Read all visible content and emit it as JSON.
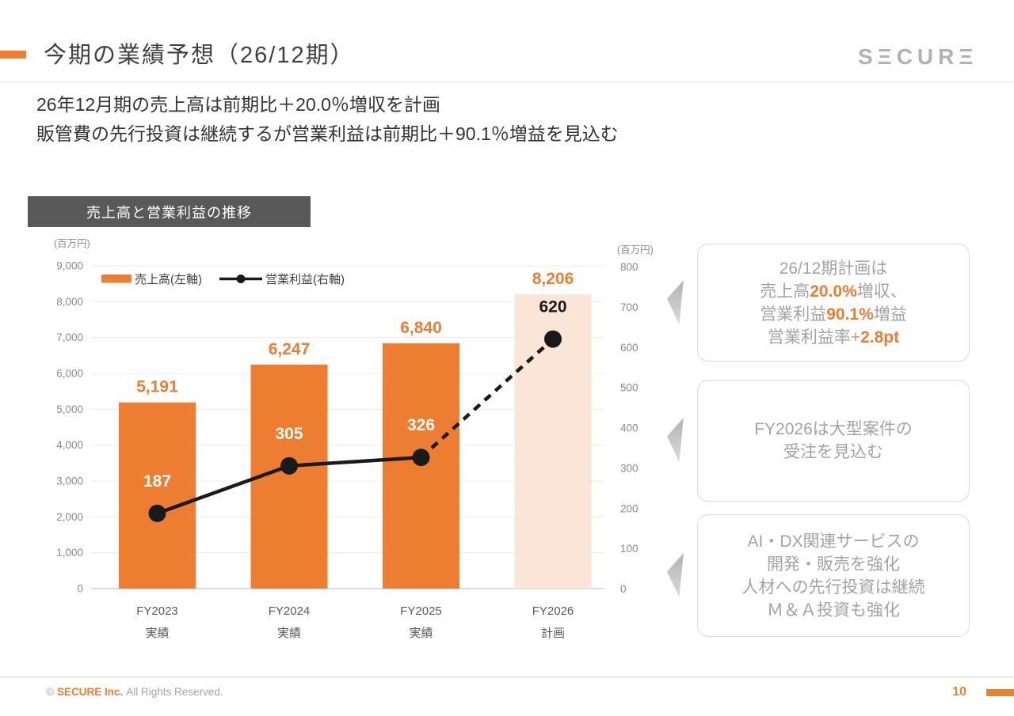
{
  "header": {
    "title": "今期の業績予想（26/12期）",
    "logo_text": "SΞCURΞ",
    "subtitle_line1": "26年12月期の売上高は前期比＋20.0％増収を計画",
    "subtitle_line2": "販管費の先行投資は継続するが営業利益は前期比＋90.1％増益を見込む"
  },
  "chart": {
    "header": "売上高と営業利益の推移"
  },
  "chart_data": {
    "type": "bar+line combo",
    "title": "売上高と営業利益の推移",
    "categories": [
      "FY2023",
      "FY2024",
      "FY2025",
      "FY2026"
    ],
    "category_sublabels": [
      "実績",
      "実績",
      "実績",
      "計画"
    ],
    "left_axis": {
      "unit": "(百万円)",
      "min": 0,
      "max": 9000,
      "step": 1000
    },
    "right_axis": {
      "unit": "(百万円)",
      "min": 0,
      "max": 800,
      "step": 100
    },
    "grid": "horizontal",
    "legend_position": "top-left-inside",
    "series": [
      {
        "name": "売上高(左軸)",
        "type": "bar",
        "axis": "left",
        "values": [
          5191,
          6247,
          6840,
          8206
        ],
        "labels": [
          "5,191",
          "6,247",
          "6,840",
          "8,206"
        ],
        "bar_colors": [
          "#ED7D31",
          "#ED7D31",
          "#ED7D31",
          "#FBE5D6"
        ],
        "label_color": "#ED7D31"
      },
      {
        "name": "営業利益(右軸)",
        "type": "line",
        "axis": "right",
        "values": [
          187,
          305,
          326,
          620
        ],
        "labels": [
          "187",
          "305",
          "326",
          "620"
        ],
        "color": "#1A1A1A",
        "dash_from_index": 2,
        "value_label_colors": [
          "#FFFFFF",
          "#FFFFFF",
          "#FFFFFF",
          "#1A1A1A"
        ]
      }
    ]
  },
  "callouts": [
    {
      "lines": [
        [
          {
            "t": "26/12期計画は"
          }
        ],
        [
          {
            "t": "売上高"
          },
          {
            "t": "20.0%",
            "hl": true
          },
          {
            "t": "増収、"
          }
        ],
        [
          {
            "t": "営業利益"
          },
          {
            "t": "90.1%",
            "hl": true
          },
          {
            "t": "増益"
          }
        ],
        [
          {
            "t": "営業利益率+"
          },
          {
            "t": "2.8pt",
            "hl": true
          }
        ]
      ]
    },
    {
      "lines": [
        [
          {
            "t": "FY2026は大型案件の"
          }
        ],
        [
          {
            "t": "受注を見込む"
          }
        ]
      ]
    },
    {
      "lines": [
        [
          {
            "t": "AI・DX関連サービスの"
          }
        ],
        [
          {
            "t": "開発・販売を強化"
          }
        ],
        [
          {
            "t": "人材への先行投資は継続"
          }
        ],
        [
          {
            "t": "Ｍ＆Ａ投資も強化"
          }
        ]
      ]
    }
  ],
  "footer": {
    "copyright_symbol": "©",
    "company": "SECURE Inc.",
    "rights": "All Rights Reserved.",
    "page_number": "10"
  },
  "colors": {
    "accent_orange": "#ED7D31",
    "plan_bar_fill": "#FBE5D6",
    "chart_title_bg": "#595959",
    "callout_border": "#D9D9D9",
    "callout_text": "#A3A3A3",
    "logo_gray": "#B2B2B2"
  }
}
